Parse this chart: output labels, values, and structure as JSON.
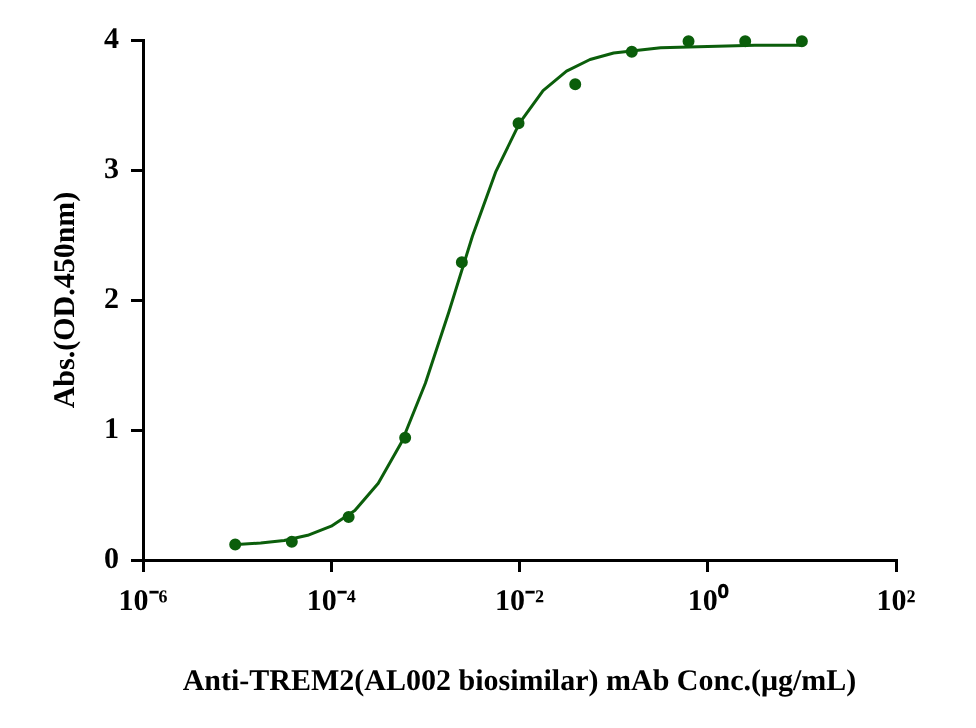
{
  "chart_data": {
    "type": "scatter",
    "xlabel": "Anti-TREM2(AL002 biosimilar) mAb Conc.(μg/mL)",
    "ylabel": "Abs.(OD.450nm)",
    "log": "x",
    "grid": false,
    "legend": false,
    "marker": "circle",
    "xlim": [
      1e-06,
      100
    ],
    "xticks": [
      {
        "value": 1e-06,
        "label": "10⁻⁶"
      },
      {
        "value": 0.0001,
        "label": "10⁻⁴"
      },
      {
        "value": 0.01,
        "label": "10⁻²"
      },
      {
        "value": 1,
        "label": "10⁰"
      },
      {
        "value": 100,
        "label": "10²"
      }
    ],
    "ylim": [
      0,
      4
    ],
    "yticks": [
      0,
      1,
      2,
      3,
      4
    ],
    "series": [
      {
        "color": "#0b5e0b",
        "x": [
          9.54e-06,
          3.81e-05,
          0.000153,
          0.00061,
          0.00244,
          0.00977,
          0.0391,
          0.156,
          0.625,
          2.5,
          10
        ],
        "values": [
          0.12,
          0.14,
          0.33,
          0.94,
          2.29,
          3.36,
          3.66,
          3.91,
          3.99,
          3.99,
          3.99
        ]
      },
      {
        "type": "line",
        "color": "#0b5e0b",
        "marker": "none",
        "line_style": "solid",
        "x": [
          1e-05,
          1.78e-05,
          3.16e-05,
          5.62e-05,
          0.0001,
          0.000178,
          0.000316,
          0.000562,
          0.001,
          0.00178,
          0.00316,
          0.00562,
          0.01,
          0.0178,
          0.0316,
          0.0562,
          0.1,
          0.316,
          1,
          3.16,
          10
        ],
        "values": [
          0.12,
          0.13,
          0.15,
          0.19,
          0.26,
          0.38,
          0.59,
          0.91,
          1.36,
          1.91,
          2.49,
          2.99,
          3.36,
          3.61,
          3.76,
          3.85,
          3.9,
          3.94,
          3.95,
          3.96,
          3.96
        ]
      }
    ]
  }
}
